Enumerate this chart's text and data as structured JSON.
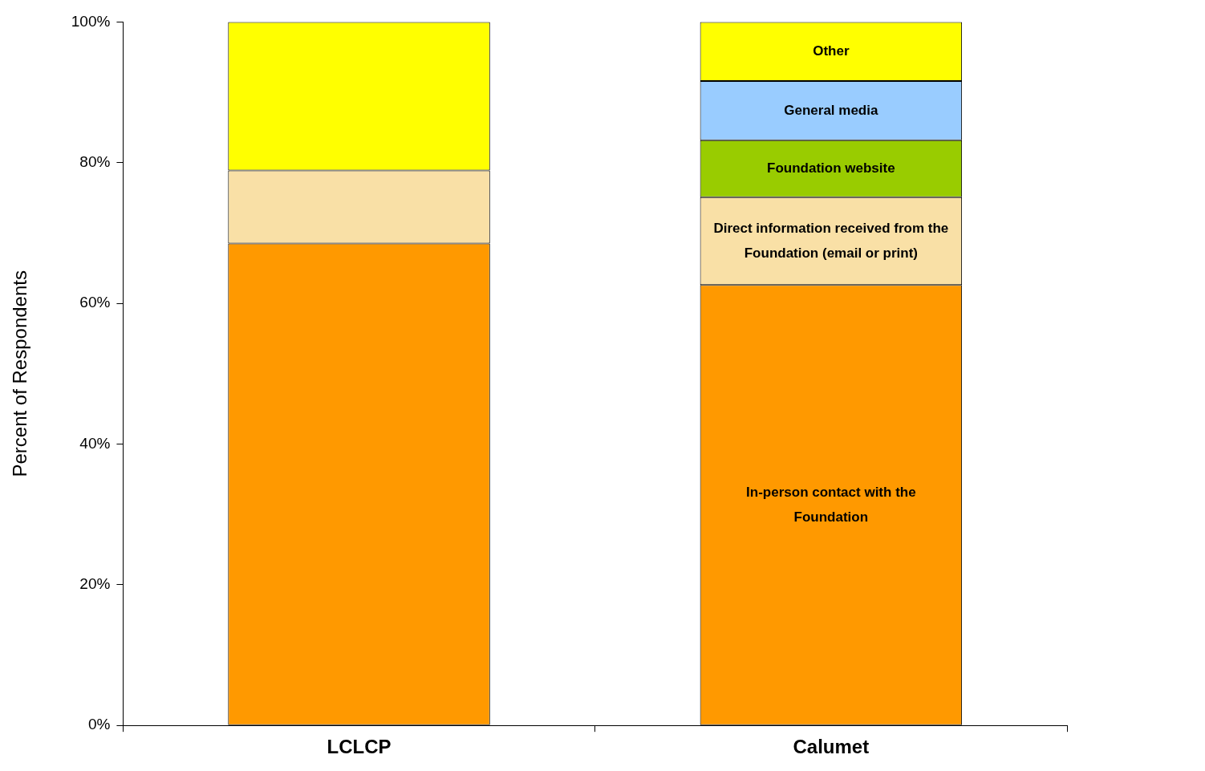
{
  "chart_data": {
    "type": "bar",
    "stacked": true,
    "ylabel": "Percent of Respondents",
    "categories": [
      "LCLCP",
      "Calumet"
    ],
    "series": [
      {
        "name": "In-person contact with the Foundation",
        "color": "#ff9900",
        "values": [
          68.5,
          62.6
        ]
      },
      {
        "name": "Direct information received from the Foundation (email or print)",
        "color": "#f9e0a6",
        "values": [
          10.4,
          12.5
        ]
      },
      {
        "name": "Foundation website",
        "color": "#99cc00",
        "values": [
          0,
          8.1
        ]
      },
      {
        "name": "General media",
        "color": "#99ccff",
        "values": [
          0,
          8.4
        ]
      },
      {
        "name": "Other",
        "color": "#ffff00",
        "values": [
          21.1,
          8.4
        ]
      }
    ],
    "ylim": [
      0,
      100
    ],
    "yticks": [
      {
        "value": 0,
        "label": "0%"
      },
      {
        "value": 20,
        "label": "20%"
      },
      {
        "value": 40,
        "label": "40%"
      },
      {
        "value": 60,
        "label": "60%"
      },
      {
        "value": 80,
        "label": "80%"
      },
      {
        "value": 100,
        "label": "100%"
      }
    ],
    "grid": false,
    "legend": false
  }
}
